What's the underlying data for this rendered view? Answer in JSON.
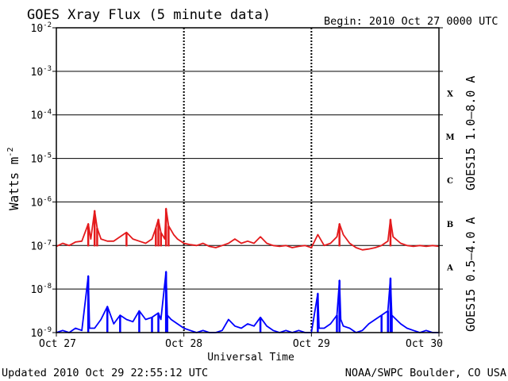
{
  "chart_data": {
    "type": "line",
    "title": "GOES Xray Flux (5 minute data)",
    "begin_label": "Begin:  2010 Oct 27 0000 UTC",
    "xlabel": "Universal Time",
    "ylabel_main": "Watts m",
    "ylabel_exp": "-2",
    "y_scale": "log",
    "ylim": [
      1e-09,
      0.01
    ],
    "xlim_days": [
      0,
      3
    ],
    "x_ticks": [
      {
        "day": 0,
        "label": "Oct 27"
      },
      {
        "day": 1,
        "label": "Oct 28"
      },
      {
        "day": 2,
        "label": "Oct 29"
      },
      {
        "day": 3,
        "label": "Oct 30"
      }
    ],
    "y_ticks": [
      {
        "exp": -2,
        "base": "10",
        "sup": "-2"
      },
      {
        "exp": -3,
        "base": "10",
        "sup": "-3"
      },
      {
        "exp": -4,
        "base": "10",
        "sup": "-4"
      },
      {
        "exp": -5,
        "base": "10",
        "sup": "-5"
      },
      {
        "exp": -6,
        "base": "10",
        "sup": "-6"
      },
      {
        "exp": -7,
        "base": "10",
        "sup": "-7"
      },
      {
        "exp": -8,
        "base": "10",
        "sup": "-8"
      },
      {
        "exp": -9,
        "base": "10",
        "sup": "-9"
      }
    ],
    "flare_classes": [
      {
        "label": "X",
        "exp": -3.5
      },
      {
        "label": "M",
        "exp": -4.5
      },
      {
        "label": "C",
        "exp": -5.5
      },
      {
        "label": "B",
        "exp": -6.5
      },
      {
        "label": "A",
        "exp": -7.5
      }
    ],
    "grid": true,
    "series": [
      {
        "name": "GOES15 1.0–8.0 A",
        "color": "#e41a1c",
        "baseline_exp": -7.02,
        "points": [
          [
            0.0,
            -7.02
          ],
          [
            0.05,
            -6.95
          ],
          [
            0.1,
            -7.0
          ],
          [
            0.15,
            -6.92
          ],
          [
            0.2,
            -6.9
          ],
          [
            0.25,
            -6.5
          ],
          [
            0.27,
            -6.85
          ],
          [
            0.3,
            -6.2
          ],
          [
            0.32,
            -6.6
          ],
          [
            0.35,
            -6.85
          ],
          [
            0.4,
            -6.9
          ],
          [
            0.45,
            -6.9
          ],
          [
            0.5,
            -6.8
          ],
          [
            0.55,
            -6.7
          ],
          [
            0.6,
            -6.85
          ],
          [
            0.65,
            -6.9
          ],
          [
            0.7,
            -6.95
          ],
          [
            0.75,
            -6.85
          ],
          [
            0.78,
            -6.6
          ],
          [
            0.8,
            -6.4
          ],
          [
            0.82,
            -6.7
          ],
          [
            0.85,
            -6.85
          ],
          [
            0.86,
            -6.15
          ],
          [
            0.88,
            -6.55
          ],
          [
            0.92,
            -6.75
          ],
          [
            0.95,
            -6.85
          ],
          [
            1.0,
            -6.95
          ],
          [
            1.05,
            -6.98
          ],
          [
            1.1,
            -7.0
          ],
          [
            1.15,
            -6.95
          ],
          [
            1.2,
            -7.02
          ],
          [
            1.25,
            -7.05
          ],
          [
            1.3,
            -7.0
          ],
          [
            1.35,
            -6.95
          ],
          [
            1.4,
            -6.85
          ],
          [
            1.45,
            -6.95
          ],
          [
            1.5,
            -6.9
          ],
          [
            1.55,
            -6.95
          ],
          [
            1.6,
            -6.8
          ],
          [
            1.65,
            -6.95
          ],
          [
            1.7,
            -7.0
          ],
          [
            1.75,
            -7.02
          ],
          [
            1.8,
            -7.0
          ],
          [
            1.85,
            -7.05
          ],
          [
            1.9,
            -7.02
          ],
          [
            1.95,
            -7.0
          ],
          [
            2.0,
            -7.05
          ],
          [
            2.05,
            -6.75
          ],
          [
            2.1,
            -7.0
          ],
          [
            2.15,
            -6.95
          ],
          [
            2.2,
            -6.8
          ],
          [
            2.22,
            -6.5
          ],
          [
            2.25,
            -6.75
          ],
          [
            2.3,
            -6.95
          ],
          [
            2.35,
            -7.05
          ],
          [
            2.4,
            -7.1
          ],
          [
            2.45,
            -7.08
          ],
          [
            2.5,
            -7.05
          ],
          [
            2.55,
            -7.0
          ],
          [
            2.6,
            -6.9
          ],
          [
            2.62,
            -6.4
          ],
          [
            2.64,
            -6.8
          ],
          [
            2.7,
            -6.95
          ],
          [
            2.75,
            -7.0
          ],
          [
            2.8,
            -7.02
          ],
          [
            2.85,
            -7.0
          ],
          [
            2.9,
            -7.02
          ],
          [
            2.95,
            -7.0
          ],
          [
            3.0,
            -7.02
          ]
        ]
      },
      {
        "name": "GOES15 0.5–4.0 A",
        "color": "#0000ff",
        "baseline_exp": -9.0,
        "points": [
          [
            0.0,
            -9.0
          ],
          [
            0.05,
            -8.95
          ],
          [
            0.1,
            -9.0
          ],
          [
            0.15,
            -8.9
          ],
          [
            0.2,
            -8.95
          ],
          [
            0.25,
            -7.7
          ],
          [
            0.26,
            -8.9
          ],
          [
            0.3,
            -8.9
          ],
          [
            0.35,
            -8.7
          ],
          [
            0.4,
            -8.4
          ],
          [
            0.45,
            -8.8
          ],
          [
            0.5,
            -8.6
          ],
          [
            0.55,
            -8.7
          ],
          [
            0.6,
            -8.75
          ],
          [
            0.65,
            -8.5
          ],
          [
            0.7,
            -8.7
          ],
          [
            0.75,
            -8.65
          ],
          [
            0.8,
            -8.55
          ],
          [
            0.82,
            -8.7
          ],
          [
            0.86,
            -7.6
          ],
          [
            0.87,
            -8.6
          ],
          [
            0.9,
            -8.7
          ],
          [
            0.95,
            -8.8
          ],
          [
            1.0,
            -8.9
          ],
          [
            1.05,
            -8.95
          ],
          [
            1.1,
            -9.0
          ],
          [
            1.15,
            -8.95
          ],
          [
            1.2,
            -9.0
          ],
          [
            1.25,
            -9.0
          ],
          [
            1.3,
            -8.95
          ],
          [
            1.35,
            -8.7
          ],
          [
            1.4,
            -8.85
          ],
          [
            1.45,
            -8.9
          ],
          [
            1.5,
            -8.8
          ],
          [
            1.55,
            -8.85
          ],
          [
            1.6,
            -8.65
          ],
          [
            1.65,
            -8.85
          ],
          [
            1.7,
            -8.95
          ],
          [
            1.75,
            -9.0
          ],
          [
            1.8,
            -8.95
          ],
          [
            1.85,
            -9.0
          ],
          [
            1.9,
            -8.95
          ],
          [
            1.95,
            -9.0
          ],
          [
            2.0,
            -9.0
          ],
          [
            2.05,
            -8.1
          ],
          [
            2.06,
            -8.9
          ],
          [
            2.1,
            -8.9
          ],
          [
            2.15,
            -8.8
          ],
          [
            2.2,
            -8.6
          ],
          [
            2.22,
            -7.8
          ],
          [
            2.23,
            -8.7
          ],
          [
            2.25,
            -8.85
          ],
          [
            2.3,
            -8.9
          ],
          [
            2.35,
            -9.0
          ],
          [
            2.4,
            -8.95
          ],
          [
            2.45,
            -8.8
          ],
          [
            2.5,
            -8.7
          ],
          [
            2.55,
            -8.6
          ],
          [
            2.6,
            -8.5
          ],
          [
            2.62,
            -7.75
          ],
          [
            2.63,
            -8.6
          ],
          [
            2.7,
            -8.8
          ],
          [
            2.75,
            -8.9
          ],
          [
            2.8,
            -8.95
          ],
          [
            2.85,
            -9.0
          ],
          [
            2.9,
            -8.95
          ],
          [
            2.95,
            -9.0
          ],
          [
            3.0,
            -9.0
          ]
        ]
      }
    ]
  },
  "footer": {
    "updated": "Updated 2010 Oct 29 22:55:12 UTC",
    "credit": "NOAA/SWPC Boulder, CO USA"
  }
}
